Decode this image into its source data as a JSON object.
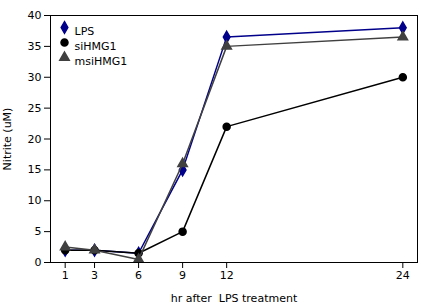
{
  "chart_data": {
    "type": "line",
    "x": [
      1,
      3,
      6,
      9,
      12,
      24
    ],
    "series": [
      {
        "name": "LPS",
        "color": "#00008B",
        "marker": "diamond",
        "values": [
          2.0,
          2.0,
          1.5,
          15.0,
          36.5,
          38.0
        ]
      },
      {
        "name": "siHMG1",
        "color": "#000000",
        "marker": "circle",
        "values": [
          2.0,
          2.0,
          1.5,
          5.0,
          22.0,
          30.0
        ]
      },
      {
        "name": "msiHMG1",
        "color": "#404040",
        "marker": "triangle",
        "values": [
          2.5,
          2.0,
          0.5,
          16.0,
          35.0,
          36.5
        ]
      }
    ],
    "xlabel": "hr after  LPS treatment",
    "ylabel": "Nitrite (uM)",
    "xlim": [
      0,
      25
    ],
    "xticks": [
      1,
      3,
      6,
      9,
      12,
      24
    ],
    "ylim": [
      0,
      40
    ],
    "yticks": [
      0,
      5,
      10,
      15,
      20,
      25,
      30,
      35,
      40
    ],
    "grid": false,
    "legend": "upper left"
  }
}
